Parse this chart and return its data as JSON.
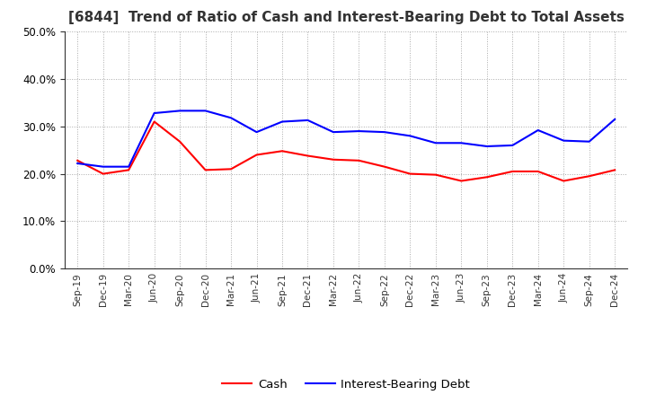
{
  "title": "[6844]  Trend of Ratio of Cash and Interest-Bearing Debt to Total Assets",
  "x_labels": [
    "Sep-19",
    "Dec-19",
    "Mar-20",
    "Jun-20",
    "Sep-20",
    "Dec-20",
    "Mar-21",
    "Jun-21",
    "Sep-21",
    "Dec-21",
    "Mar-22",
    "Jun-22",
    "Sep-22",
    "Dec-22",
    "Mar-23",
    "Jun-23",
    "Sep-23",
    "Dec-23",
    "Mar-24",
    "Jun-24",
    "Sep-24",
    "Dec-24"
  ],
  "cash": [
    0.228,
    0.2,
    0.208,
    0.31,
    0.268,
    0.208,
    0.21,
    0.24,
    0.248,
    0.238,
    0.23,
    0.228,
    0.215,
    0.2,
    0.198,
    0.185,
    0.193,
    0.205,
    0.205,
    0.185,
    0.195,
    0.208
  ],
  "interest_bearing_debt": [
    0.222,
    0.215,
    0.215,
    0.328,
    0.333,
    0.333,
    0.318,
    0.288,
    0.31,
    0.313,
    0.288,
    0.29,
    0.288,
    0.28,
    0.265,
    0.265,
    0.258,
    0.26,
    0.292,
    0.27,
    0.268,
    0.315
  ],
  "cash_color": "#ff0000",
  "debt_color": "#0000ff",
  "ylim": [
    0.0,
    0.5
  ],
  "yticks": [
    0.0,
    0.1,
    0.2,
    0.3,
    0.4,
    0.5
  ],
  "background_color": "#ffffff",
  "plot_bg_color": "#ffffff",
  "grid_color": "#aaaaaa",
  "title_fontsize": 11,
  "legend_labels": [
    "Cash",
    "Interest-Bearing Debt"
  ]
}
